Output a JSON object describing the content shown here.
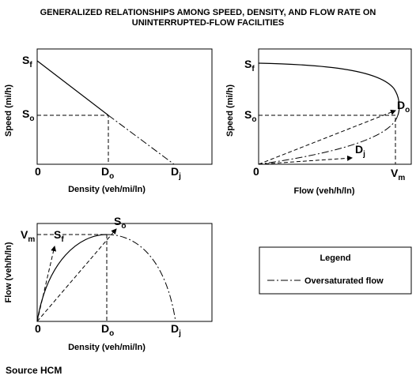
{
  "header": {
    "title_line1": "GENERALIZED RELATIONSHIPS AMONG SPEED, DENSITY, AND FLOW RATE ON",
    "title_line2": "UNINTERRUPTED-FLOW FACILITIES"
  },
  "panels": [
    {
      "y_axis_label": "Speed (mi/h)",
      "x_axis_label": "Density (veh/mi/ln)",
      "origin": "0",
      "labels": [
        {
          "base": "S",
          "sub": "f"
        },
        {
          "base": "S",
          "sub": "o"
        },
        {
          "base": "D",
          "sub": "o"
        },
        {
          "base": "D",
          "sub": "j"
        }
      ]
    },
    {
      "y_axis_label": "Speed (mi/h)",
      "x_axis_label": "Flow (veh/h/ln)",
      "origin": "0",
      "labels": [
        {
          "base": "S",
          "sub": "f"
        },
        {
          "base": "S",
          "sub": "o"
        },
        {
          "base": "D",
          "sub": "o"
        },
        {
          "base": "D",
          "sub": "j"
        },
        {
          "base": "V",
          "sub": "m"
        }
      ]
    },
    {
      "y_axis_label": "Flow (veh/h/ln)",
      "x_axis_label": "Density (veh/mi/ln)",
      "origin": "0",
      "labels": [
        {
          "base": "V",
          "sub": "m"
        },
        {
          "base": "S",
          "sub": "f"
        },
        {
          "base": "S",
          "sub": "o"
        },
        {
          "base": "D",
          "sub": "o"
        },
        {
          "base": "D",
          "sub": "j"
        }
      ]
    }
  ],
  "legend": {
    "title": "Legend",
    "entry": "Oversaturated flow"
  },
  "footer": {
    "source": "Source HCM"
  }
}
